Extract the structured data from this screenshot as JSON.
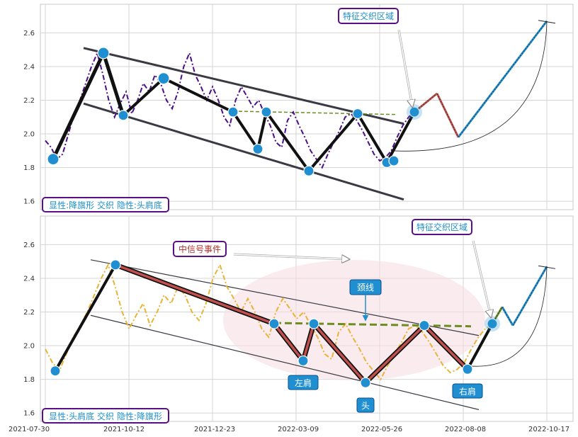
{
  "colors": {
    "price_top": "#4b0f86",
    "price_bottom": "#e8b437",
    "zigzag": "#111111",
    "trend": "#3a3a44",
    "dot": "#1f8fd1",
    "neck": "#6b8e23",
    "proj_red": "#c0504d",
    "proj_green": "#6b8e23",
    "proj_blue": "#1f8fd1",
    "purple_box": "#5a0f86",
    "ellipse": "#f6dde2"
  },
  "chart_data": [
    {
      "type": "line",
      "panel": "top",
      "ylim": [
        1.55,
        2.77
      ],
      "yticks": [
        "1.6",
        "1.8",
        "2.0",
        "2.2",
        "2.4",
        "2.6"
      ],
      "grid": true,
      "annotations": {
        "pattern_label": "显性:降旗形 交织 隐性:头肩底",
        "feature_label": "特征交织区域"
      },
      "series": [
        {
          "values": [
            1.96,
            1.92,
            1.85,
            1.88,
            2.0,
            2.12,
            2.2,
            2.3,
            2.4,
            2.48,
            2.35,
            2.2,
            2.1,
            2.18,
            2.25,
            2.12,
            2.2,
            2.3,
            2.25,
            2.35,
            2.3,
            2.2,
            2.15,
            2.25,
            2.4,
            2.48,
            2.35,
            2.28,
            2.2,
            2.28,
            2.2,
            2.1,
            2.05,
            2.2,
            2.28,
            2.22,
            2.16,
            2.2,
            2.12,
            2.05,
            1.95,
            1.92,
            2.08,
            2.13,
            2.05,
            1.98,
            1.9,
            1.85,
            1.8,
            1.88,
            1.95,
            2.02,
            2.1,
            2.12,
            2.08,
            2.02,
            1.95,
            1.88,
            1.84,
            1.86,
            1.9,
            1.98,
            2.05,
            2.1,
            2.13
          ]
        }
      ],
      "zigzag_values": [
        1.85,
        2.48,
        2.11,
        2.33,
        2.13,
        1.91,
        2.13,
        1.78,
        2.12,
        1.83,
        2.13
      ],
      "projection_values": [
        2.13,
        2.24,
        1.98,
        2.67
      ]
    },
    {
      "type": "line",
      "panel": "bottom",
      "ylim": [
        1.55,
        2.77
      ],
      "yticks": [
        "1.6",
        "1.8",
        "2.0",
        "2.2",
        "2.4",
        "2.6"
      ],
      "xticks": [
        "2021-07-30",
        "2021-10-12",
        "2021-12-23",
        "2022-03-09",
        "2022-05-26",
        "2022-08-08",
        "2022-10-17"
      ],
      "grid": true,
      "annotations": {
        "pattern_label": "显性:头肩底 交织 隐性:降旗形",
        "feature_label": "特征交织区域",
        "signal_label": "中信号事件",
        "neck_label": "颈线",
        "left_shoulder": "左肩",
        "head": "头",
        "right_shoulder": "右肩"
      },
      "series": [
        {
          "values": [
            1.98,
            1.9,
            1.85,
            1.95,
            2.05,
            2.12,
            2.2,
            2.3,
            2.4,
            2.48,
            2.35,
            2.2,
            2.1,
            2.18,
            2.25,
            2.12,
            2.2,
            2.3,
            2.25,
            2.35,
            2.3,
            2.2,
            2.15,
            2.25,
            2.4,
            2.48,
            2.35,
            2.28,
            2.2,
            2.28,
            2.2,
            2.1,
            2.05,
            2.2,
            2.28,
            2.22,
            2.16,
            2.2,
            2.12,
            2.05,
            1.95,
            1.92,
            2.08,
            2.13,
            2.05,
            1.98,
            1.9,
            1.85,
            1.8,
            1.88,
            1.95,
            2.02,
            2.1,
            2.12,
            2.08,
            2.02,
            1.95,
            1.88,
            1.84,
            1.86,
            1.9,
            1.98,
            2.05,
            2.1,
            2.13
          ]
        }
      ],
      "zigzag_values": [
        1.85,
        2.48,
        2.13,
        1.91,
        2.13,
        1.78,
        2.12,
        1.86,
        2.13
      ],
      "projection_values": [
        2.13,
        2.23,
        2.12,
        2.47
      ]
    }
  ]
}
